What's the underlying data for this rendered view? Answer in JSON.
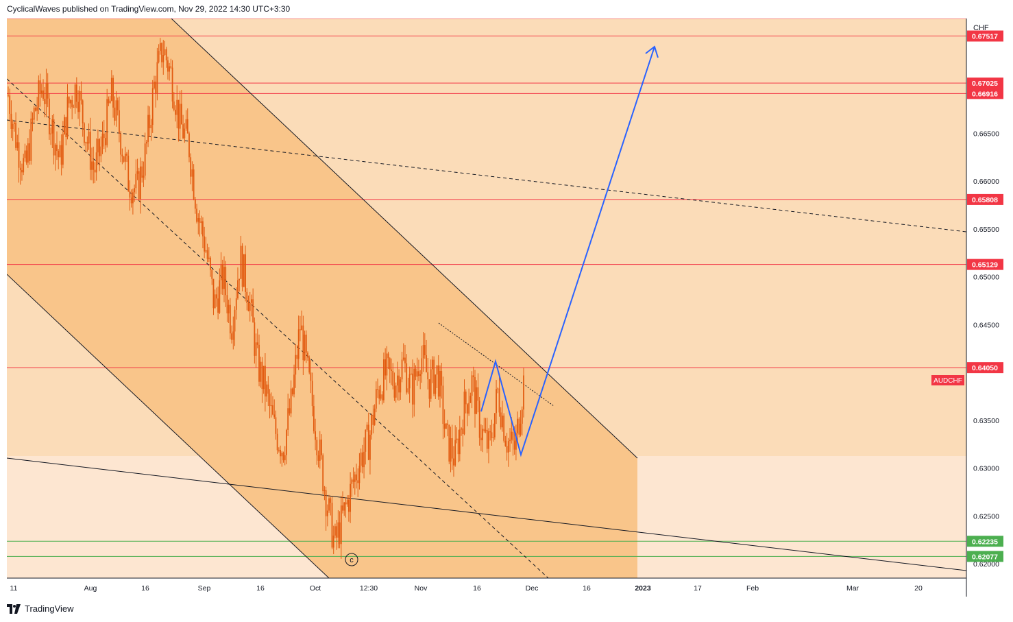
{
  "header": {
    "publisher_line": "CyclicalWaves published on TradingView.com, Nov 29, 2022 14:30 UTC+3:30"
  },
  "footer": {
    "brand": "TradingView"
  },
  "chart_data": {
    "type": "candlestick",
    "symbol": "AUDCHF",
    "currency_label": "CHF",
    "y_axis": {
      "range": [
        0.6185,
        0.677
      ],
      "ticks": [
        "0.66500",
        "0.66000",
        "0.65500",
        "0.65000",
        "0.64500",
        "0.63500",
        "0.63000",
        "0.62500",
        "0.62000"
      ],
      "tick_values": [
        0.665,
        0.66,
        0.655,
        0.65,
        0.645,
        0.635,
        0.63,
        0.625,
        0.62
      ]
    },
    "x_axis": {
      "labels": [
        "11",
        "Aug",
        "16",
        "Sep",
        "16",
        "Oct",
        "12:30",
        "Nov",
        "16",
        "Dec",
        "16",
        "2023",
        "17",
        "Feb",
        "Mar",
        "20"
      ]
    },
    "horizontal_levels": [
      {
        "value": 0.67517,
        "label": "0.67517",
        "color": "#f23645"
      },
      {
        "value": 0.67025,
        "label": "0.67025",
        "color": "#f23645"
      },
      {
        "value": 0.66916,
        "label": "0.66916",
        "color": "#f23645"
      },
      {
        "value": 0.65808,
        "label": "0.65808",
        "color": "#f23645"
      },
      {
        "value": 0.65129,
        "label": "0.65129",
        "color": "#f23645"
      },
      {
        "value": 0.6405,
        "label": "0.64050",
        "color": "#f23645"
      },
      {
        "value": 0.62235,
        "label": "0.62235",
        "color": "#4caf50"
      },
      {
        "value": 0.62077,
        "label": "0.62077",
        "color": "#4caf50"
      }
    ],
    "top_level_unlabeled": 0.677,
    "price_series": [
      0.669,
      0.664,
      0.661,
      0.667,
      0.67,
      0.666,
      0.662,
      0.668,
      0.67,
      0.665,
      0.661,
      0.664,
      0.669,
      0.665,
      0.66,
      0.659,
      0.663,
      0.67,
      0.674,
      0.671,
      0.666,
      0.664,
      0.657,
      0.653,
      0.647,
      0.65,
      0.645,
      0.652,
      0.648,
      0.641,
      0.638,
      0.634,
      0.632,
      0.637,
      0.645,
      0.639,
      0.633,
      0.627,
      0.622,
      0.625,
      0.628,
      0.631,
      0.633,
      0.638,
      0.64,
      0.639,
      0.641,
      0.638,
      0.642,
      0.639,
      0.64,
      0.633,
      0.631,
      0.636,
      0.639,
      0.634,
      0.632,
      0.638,
      0.633,
      0.632,
      0.639
    ],
    "annotations": {
      "wave_label": "c",
      "symbol_tag": "AUDCHF",
      "projection": [
        {
          "date": "Nov 18",
          "value": 0.6363
        },
        {
          "date": "Nov 21",
          "value": 0.641
        },
        {
          "date": "Nov 27",
          "value": 0.6314
        },
        {
          "date": "Jan 3",
          "value": 0.6752
        }
      ]
    },
    "colors": {
      "channel_fill": "#f9c58a",
      "background_fill": "#fbdcb8",
      "lower_fill": "#fde6d1",
      "candle": "#e25b10",
      "projection": "#2962ff",
      "resistance": "#f23645",
      "support": "#4caf50"
    }
  }
}
